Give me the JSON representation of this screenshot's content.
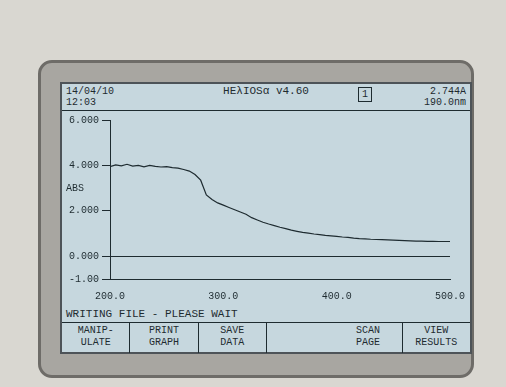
{
  "screen": {
    "date": "14/04/10",
    "time": "12:03",
    "instrument": "HEλIOSα v4.60",
    "cell": "1",
    "readout": [
      "2.744A",
      "190.0nm"
    ],
    "status": "WRITING FILE - PLEASE WAIT",
    "softkeys": [
      [
        "MANIP-",
        "ULATE"
      ],
      [
        "PRINT",
        "GRAPH"
      ],
      [
        "SAVE",
        "DATA"
      ],
      null,
      [
        "SCAN",
        "PAGE"
      ],
      [
        "VIEW",
        "RESULTS"
      ]
    ]
  },
  "chart_data": {
    "type": "line",
    "y_label": "ABS",
    "color": "#1e2b30",
    "grid": false,
    "x": [
      200,
      205,
      210,
      215,
      220,
      225,
      230,
      235,
      240,
      245,
      250,
      255,
      260,
      265,
      270,
      275,
      280,
      285,
      290,
      295,
      300,
      305,
      310,
      315,
      320,
      325,
      330,
      335,
      340,
      345,
      350,
      355,
      360,
      365,
      370,
      375,
      380,
      385,
      390,
      395,
      400,
      405,
      410,
      415,
      420,
      425,
      430,
      435,
      440,
      445,
      450,
      455,
      460,
      465,
      470,
      475,
      480,
      485,
      490,
      495,
      500
    ],
    "values": [
      3.95,
      4.02,
      3.98,
      4.05,
      3.97,
      4.0,
      3.94,
      4.0,
      3.96,
      3.93,
      3.95,
      3.9,
      3.88,
      3.82,
      3.75,
      3.6,
      3.35,
      2.7,
      2.5,
      2.35,
      2.25,
      2.15,
      2.05,
      1.95,
      1.85,
      1.7,
      1.6,
      1.5,
      1.42,
      1.35,
      1.28,
      1.22,
      1.15,
      1.1,
      1.05,
      1.02,
      0.98,
      0.95,
      0.92,
      0.9,
      0.88,
      0.85,
      0.83,
      0.8,
      0.78,
      0.77,
      0.75,
      0.74,
      0.73,
      0.72,
      0.71,
      0.7,
      0.69,
      0.68,
      0.67,
      0.67,
      0.66,
      0.66,
      0.65,
      0.65,
      0.65
    ],
    "xlim": [
      200,
      500
    ],
    "xticks": [
      {
        "value": 200,
        "label": "200.0"
      },
      {
        "value": 300,
        "label": "300.0"
      },
      {
        "value": 400,
        "label": "400.0"
      },
      {
        "value": 500,
        "label": "500.0"
      }
    ],
    "ylim": [
      -1,
      6
    ],
    "yticks": [
      {
        "value": -1,
        "label": "-1.00"
      },
      {
        "value": 0,
        "label": "0.000"
      },
      {
        "value": 2,
        "label": "2.000"
      },
      {
        "value": 4,
        "label": "4.000"
      },
      {
        "value": 6,
        "label": "6.000"
      }
    ]
  }
}
